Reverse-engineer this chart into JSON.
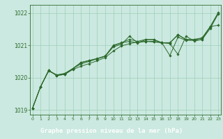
{
  "title": "Graphe pression niveau de la mer (hPa)",
  "bg_color": "#cbe9e0",
  "plot_bg": "#cbe9e0",
  "label_bg": "#3a6b3a",
  "label_fg": "#ffffff",
  "line_color": "#2d6a2d",
  "grid_color": "#9ecfb8",
  "xlim": [
    -0.3,
    23.3
  ],
  "ylim": [
    1018.85,
    1022.25
  ],
  "yticks": [
    1019,
    1020,
    1021,
    1022
  ],
  "xticks": [
    0,
    1,
    2,
    3,
    4,
    5,
    6,
    7,
    8,
    9,
    10,
    11,
    12,
    13,
    14,
    15,
    16,
    17,
    18,
    19,
    20,
    21,
    22,
    23
  ],
  "series": [
    [
      1019.05,
      1019.72,
      1020.22,
      1020.06,
      1020.1,
      1020.25,
      1020.35,
      1020.43,
      1020.52,
      1020.62,
      1020.82,
      1020.98,
      1021.05,
      1021.1,
      1021.12,
      1021.1,
      1021.08,
      1020.68,
      1021.25,
      1021.15,
      1021.15,
      1021.18,
      1021.52,
      1021.98
    ],
    [
      1019.05,
      1019.72,
      1020.22,
      1020.06,
      1020.1,
      1020.28,
      1020.42,
      1020.5,
      1020.58,
      1020.66,
      1020.95,
      1021.03,
      1021.28,
      1021.08,
      1021.12,
      1021.12,
      1021.08,
      1021.05,
      1020.72,
      1021.28,
      1021.13,
      1021.18,
      1021.58,
      1021.62
    ],
    [
      1019.05,
      1019.72,
      1020.2,
      1020.08,
      1020.12,
      1020.28,
      1020.46,
      1020.52,
      1020.58,
      1020.66,
      1020.98,
      1021.07,
      1021.12,
      1021.07,
      1021.17,
      1021.17,
      1021.07,
      1021.07,
      1021.32,
      1021.17,
      1021.17,
      1021.22,
      1021.57,
      1021.98
    ],
    [
      1019.05,
      1019.72,
      1020.22,
      1020.08,
      1020.13,
      1020.28,
      1020.47,
      1020.53,
      1020.59,
      1020.67,
      1021.0,
      1021.08,
      1021.18,
      1021.12,
      1021.18,
      1021.18,
      1021.08,
      1021.08,
      1021.33,
      1021.18,
      1021.18,
      1021.23,
      1021.58,
      1022.02
    ]
  ]
}
